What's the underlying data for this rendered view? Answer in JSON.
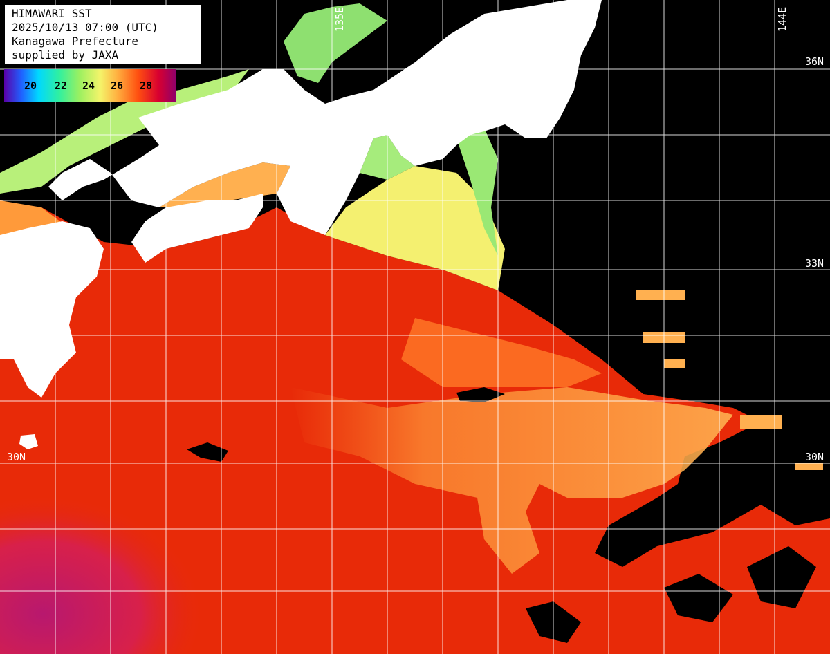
{
  "header": {
    "line1": "HIMAWARI SST",
    "line2": "2025/10/13 07:00 (UTC)",
    "line3": "Kanagawa Prefecture",
    "line4": "supplied by JAXA"
  },
  "colorbar": {
    "labels": [
      "20",
      "22",
      "24",
      "26",
      "28"
    ],
    "colors": [
      "#5a00a8",
      "#2060ff",
      "#00d8ff",
      "#30f0a0",
      "#9cf060",
      "#f4f46a",
      "#ffb040",
      "#ff5010",
      "#d80030",
      "#90006a"
    ]
  },
  "grid_labels": {
    "lat_36": "36N",
    "lat_33": "33N",
    "lat_30_right": "30N",
    "lat_30_left": "30N",
    "lon_144": "144E",
    "lon_135": "135E"
  },
  "colors": {
    "land": "#ffffff",
    "no_data": "#000000",
    "grid": "#ffffff",
    "sst_warm": "#e82a08",
    "sst_hot": "#b8186e",
    "sst_mild": "#ff9a3a",
    "sst_cool": "#f4f070",
    "sst_cold": "#8ee070"
  }
}
